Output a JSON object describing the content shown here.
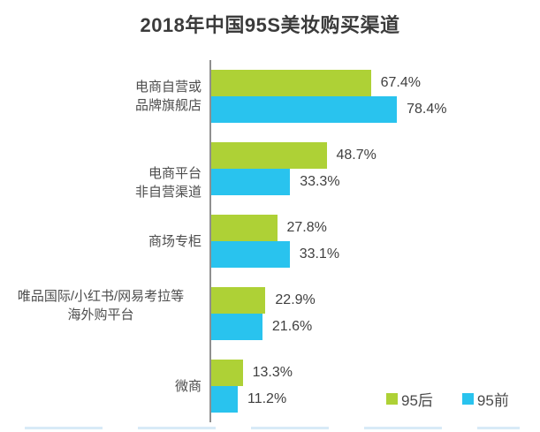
{
  "chart_data": {
    "type": "bar",
    "orientation": "horizontal",
    "title": "2018年中国95S美妆购买渠道",
    "categories": [
      "电商自营或\n品牌旗舰店",
      "电商平台\n非自营渠道",
      "商场专柜",
      "唯品国际/小红书/网易考拉等\n海外购平台",
      "微商"
    ],
    "series": [
      {
        "name": "95后",
        "color": "#aed136",
        "values": [
          67.4,
          48.7,
          27.8,
          22.9,
          13.3
        ]
      },
      {
        "name": "95前",
        "color": "#29c3ee",
        "values": [
          78.4,
          33.3,
          33.1,
          21.6,
          11.2
        ]
      }
    ],
    "value_suffix": "%",
    "xlim": [
      0,
      80
    ],
    "grid": false,
    "legend_position": "bottom-right",
    "axis_color": "#8f8f8f"
  }
}
